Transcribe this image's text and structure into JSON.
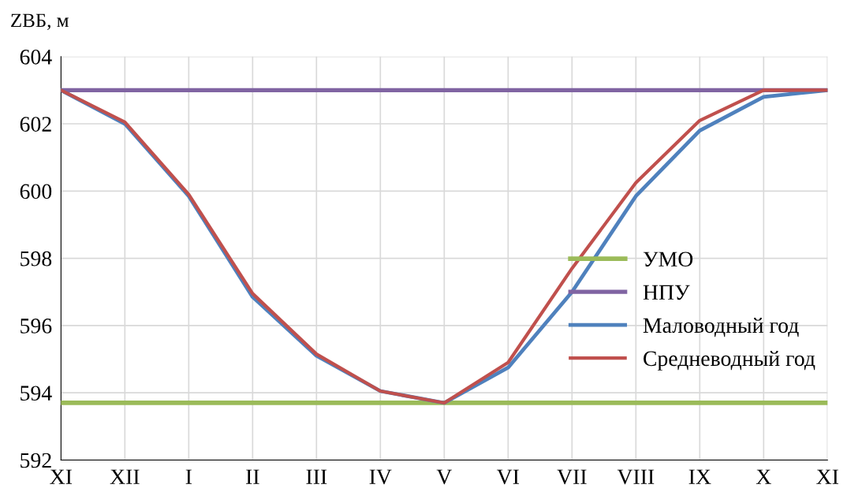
{
  "chart_data": {
    "type": "line",
    "ylabel": "ZВБ, м",
    "categories": [
      "XI",
      "XII",
      "I",
      "II",
      "III",
      "IV",
      "V",
      "VI",
      "VII",
      "VIII",
      "IX",
      "X",
      "XI"
    ],
    "series": [
      {
        "name": "УМО",
        "color": "#9bbb59",
        "values": [
          593.7,
          593.7,
          593.7,
          593.7,
          593.7,
          593.7,
          593.7,
          593.7,
          593.7,
          593.7,
          593.7,
          593.7,
          593.7
        ]
      },
      {
        "name": "НПУ",
        "color": "#8064a2",
        "values": [
          603,
          603,
          603,
          603,
          603,
          603,
          603,
          603,
          603,
          603,
          603,
          603,
          603
        ]
      },
      {
        "name": "Маловодный год",
        "color": "#4f81bd",
        "values": [
          603,
          602.0,
          599.85,
          596.85,
          595.1,
          594.05,
          593.7,
          594.75,
          597.0,
          599.85,
          601.8,
          602.8,
          603
        ]
      },
      {
        "name": "Средневодный год",
        "color": "#c0504d",
        "values": [
          603,
          602.05,
          599.9,
          596.95,
          595.15,
          594.05,
          593.7,
          594.9,
          597.7,
          600.25,
          602.1,
          603,
          603
        ]
      }
    ],
    "ylim": [
      592,
      604
    ],
    "yticks": [
      592,
      594,
      596,
      598,
      600,
      602,
      604
    ],
    "grid": true,
    "legend": "right",
    "marker": "none",
    "line_style": "solid"
  }
}
